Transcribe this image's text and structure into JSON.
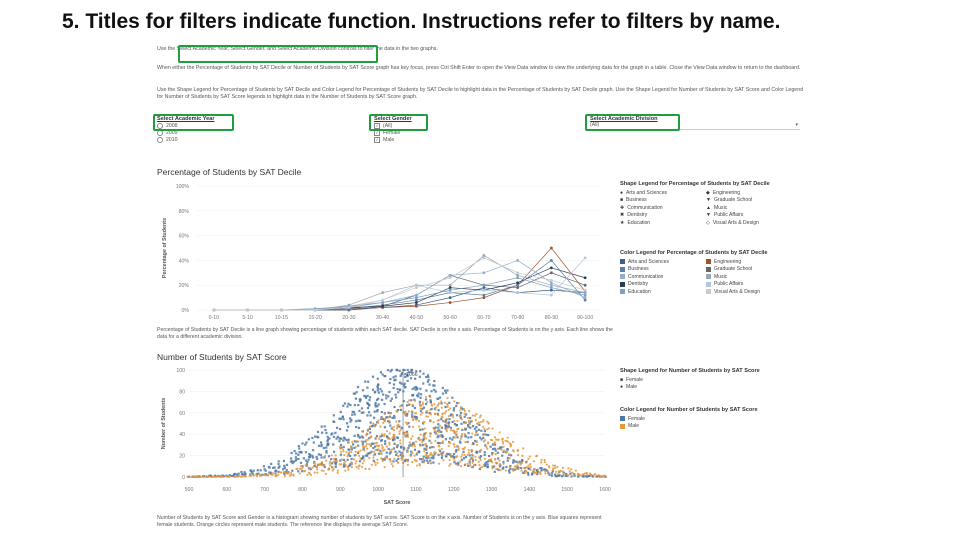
{
  "slide_title": "5. Titles for filters indicate function. Instructions refer to filters by name.",
  "instructions": [
    "Use the Select Academic Year, Select Gender, and Select Academic Division controls to filter the data in the two graphs.",
    "When either the Percentage of Students by SAT Decile or Number of Students by SAT Score graph has key focus, press Ctrl Shift Enter to open the View Data window to view the underlying data for the graph in a table. Close the View Data window to return to the dashboard.",
    "Use the Shape Legend for Percentage of Students by SAT Decile and Color Legend for Percentage of Students by SAT Decile to highlight data in the Percentage of Students by SAT Decile graph. Use the Shape Legend for Number of Students by SAT Score and Color Legend for Number of Students by SAT Score legends to highlight data in the Number of Students by SAT Score graph."
  ],
  "filters": {
    "year": {
      "label": "Select Academic Year",
      "options": [
        "2008",
        "2009",
        "2010"
      ]
    },
    "gender": {
      "label": "Select Gender",
      "options": [
        "(All)",
        "Female",
        "Male"
      ]
    },
    "division": {
      "label": "Select Academic Division",
      "value": "(All)",
      "chevron_icon": "chevron-down-icon"
    }
  },
  "decile_chart": {
    "title": "Percentage of Students by SAT Decile",
    "ylabel": "Percentage of Students",
    "description": "Percentage of Students by SAT Decile is a line graph showing percentage of students within each SAT decile. SAT Decile is on the x axis. Percentage of Students is on the y axis. Each line shows the data for a different academic division."
  },
  "score_chart": {
    "title": "Number of Students by SAT Score",
    "ylabel": "Number of Students",
    "xlabel": "SAT Score",
    "ref_label": "1066",
    "description": "Number of Students by SAT Score and Gender is a histogram showing number of students by SAT score. SAT Score is on the x axis. Number of Students is on the y axis. Blue squares represent female students. Orange circles represent male students. The reference line displays the average SAT Score."
  },
  "legends": {
    "shape_decile": {
      "title": "Shape Legend for Percentage of Students by SAT Decile",
      "items": [
        {
          "label": "Arts and Sciences",
          "icon": "circle-icon"
        },
        {
          "label": "Engineering",
          "icon": "diamond-icon"
        },
        {
          "label": "Business",
          "icon": "square-icon"
        },
        {
          "label": "Graduate School",
          "icon": "triangle-down-icon"
        },
        {
          "label": "Communication",
          "icon": "plus-icon"
        },
        {
          "label": "Music",
          "icon": "triangle-up-icon"
        },
        {
          "label": "Dentistry",
          "icon": "x-icon"
        },
        {
          "label": "Public Affairs",
          "icon": "triangle-down-icon"
        },
        {
          "label": "Education",
          "icon": "star-icon"
        },
        {
          "label": "Visual Arts & Design",
          "icon": "diamond-outline-icon"
        }
      ]
    },
    "color_decile": {
      "title": "Color Legend for Percentage of Students by SAT Decile",
      "items": [
        {
          "label": "Arts and Sciences",
          "color": "#3e5f8a"
        },
        {
          "label": "Engineering",
          "color": "#a0522d"
        },
        {
          "label": "Business",
          "color": "#5b7fa8"
        },
        {
          "label": "Graduate School",
          "color": "#666666"
        },
        {
          "label": "Communication",
          "color": "#8fb0d3"
        },
        {
          "label": "Music",
          "color": "#9aa7b5"
        },
        {
          "label": "Dentistry",
          "color": "#2c3e50"
        },
        {
          "label": "Public Affairs",
          "color": "#b5c6d8"
        },
        {
          "label": "Education",
          "color": "#7b9ec4"
        },
        {
          "label": "Visual Arts & Design",
          "color": "#c9c9c9"
        }
      ]
    },
    "shape_score": {
      "title": "Shape Legend for Number of Students by SAT Score",
      "items": [
        {
          "label": "Female",
          "icon": "square-icon"
        },
        {
          "label": "Male",
          "icon": "circle-icon"
        }
      ]
    },
    "color_score": {
      "title": "Color Legend for Number of Students by SAT Score",
      "items": [
        {
          "label": "Female",
          "color": "#4e79a7"
        },
        {
          "label": "Male",
          "color": "#e8963a"
        }
      ]
    }
  },
  "chart_data": [
    {
      "type": "line",
      "title": "Percentage of Students by SAT Decile",
      "xlabel": "",
      "ylabel": "Percentage of Students",
      "categories": [
        "0-10",
        "5-10",
        "10-15",
        "15-20",
        "20-30",
        "30-40",
        "40-50",
        "50-60",
        "60-70",
        "70-80",
        "80-90",
        "90-100"
      ],
      "ylim": [
        0,
        100
      ],
      "yticks": [
        "0%",
        "20%",
        "40%",
        "60%",
        "80%",
        "100%"
      ],
      "series": [
        {
          "name": "Arts and Sciences",
          "values": [
            0,
            0,
            0,
            0,
            0,
            2,
            4,
            10,
            18,
            14,
            16,
            14
          ]
        },
        {
          "name": "Engineering",
          "values": [
            0,
            0,
            0,
            0,
            1,
            2,
            3,
            6,
            10,
            20,
            50,
            15
          ]
        },
        {
          "name": "Business",
          "values": [
            0,
            0,
            0,
            0,
            1,
            4,
            8,
            14,
            12,
            20,
            40,
            8
          ]
        },
        {
          "name": "Graduate School",
          "values": [
            0,
            0,
            0,
            0,
            0,
            3,
            12,
            28,
            20,
            18,
            30,
            20
          ]
        },
        {
          "name": "Communication",
          "values": [
            0,
            0,
            0,
            1,
            2,
            6,
            12,
            28,
            30,
            40,
            22,
            10
          ]
        },
        {
          "name": "Music",
          "values": [
            0,
            0,
            0,
            0,
            4,
            14,
            20,
            20,
            44,
            28,
            20,
            14
          ]
        },
        {
          "name": "Dentistry",
          "values": [
            0,
            0,
            0,
            0,
            2,
            3,
            6,
            18,
            16,
            22,
            34,
            26
          ]
        },
        {
          "name": "Public Affairs",
          "values": [
            0,
            0,
            0,
            0,
            3,
            8,
            20,
            14,
            16,
            14,
            12,
            42
          ]
        },
        {
          "name": "Education",
          "values": [
            0,
            0,
            0,
            1,
            3,
            6,
            10,
            16,
            20,
            26,
            18,
            12
          ]
        },
        {
          "name": "Visual Arts & Design",
          "values": [
            0,
            0,
            0,
            0,
            2,
            8,
            18,
            26,
            42,
            30,
            24,
            16
          ]
        }
      ]
    },
    {
      "type": "scatter",
      "title": "Number of Students by SAT Score",
      "xlabel": "SAT Score",
      "ylabel": "Number of Students",
      "xlim": [
        500,
        1600
      ],
      "ylim": [
        0,
        100
      ],
      "xticks": [
        500,
        600,
        700,
        800,
        900,
        1000,
        1100,
        1200,
        1300,
        1400,
        1500,
        1600
      ],
      "yticks": [
        0,
        20,
        40,
        60,
        80,
        100
      ],
      "reference_line": 1066,
      "series": [
        {
          "name": "Female",
          "shape": "square",
          "peak_x": 1060,
          "peak_y": 95
        },
        {
          "name": "Male",
          "shape": "circle",
          "peak_x": 1140,
          "peak_y": 70
        }
      ]
    }
  ]
}
